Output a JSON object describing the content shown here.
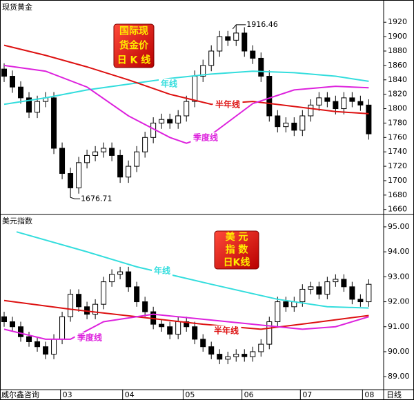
{
  "chart_data": [
    {
      "type": "candlestick",
      "title": "现货黄金",
      "badge": [
        "国际现",
        "货金价",
        "日 K 线"
      ],
      "x": [
        0,
        1,
        2,
        3,
        4,
        5,
        6,
        7,
        8,
        9,
        10,
        11,
        12,
        13,
        14,
        15,
        16,
        17,
        18,
        19,
        20,
        21,
        22,
        23,
        24,
        25,
        26,
        27,
        28,
        29,
        30,
        31,
        32,
        33,
        34,
        35,
        36,
        37,
        38,
        39,
        40,
        41,
        42,
        43,
        44
      ],
      "open": [
        1855,
        1845,
        1830,
        1815,
        1795,
        1810,
        1815,
        1745,
        1710,
        1690,
        1725,
        1735,
        1740,
        1745,
        1735,
        1705,
        1720,
        1740,
        1760,
        1780,
        1785,
        1780,
        1790,
        1810,
        1845,
        1860,
        1880,
        1900,
        1895,
        1905,
        1880,
        1870,
        1845,
        1790,
        1775,
        1780,
        1770,
        1790,
        1805,
        1815,
        1810,
        1800,
        1815,
        1810,
        1805
      ],
      "high": [
        1863,
        1853,
        1838,
        1823,
        1818,
        1823,
        1823,
        1753,
        1718,
        1733,
        1743,
        1748,
        1753,
        1753,
        1743,
        1728,
        1748,
        1768,
        1788,
        1793,
        1793,
        1798,
        1818,
        1853,
        1868,
        1888,
        1908,
        1908,
        1916.46,
        1913,
        1888,
        1878,
        1853,
        1798,
        1788,
        1788,
        1798,
        1813,
        1823,
        1823,
        1818,
        1823,
        1823,
        1818,
        1813
      ],
      "low": [
        1837,
        1822,
        1807,
        1787,
        1787,
        1802,
        1737,
        1702,
        1676.71,
        1682,
        1717,
        1727,
        1732,
        1727,
        1697,
        1697,
        1712,
        1732,
        1752,
        1772,
        1772,
        1772,
        1782,
        1802,
        1837,
        1852,
        1872,
        1887,
        1887,
        1872,
        1862,
        1837,
        1782,
        1767,
        1767,
        1762,
        1762,
        1782,
        1797,
        1802,
        1792,
        1792,
        1802,
        1797,
        1757
      ],
      "close": [
        1845,
        1830,
        1815,
        1795,
        1810,
        1815,
        1745,
        1710,
        1690,
        1725,
        1735,
        1740,
        1745,
        1735,
        1705,
        1720,
        1740,
        1760,
        1780,
        1785,
        1780,
        1790,
        1810,
        1845,
        1860,
        1880,
        1900,
        1895,
        1905,
        1880,
        1870,
        1845,
        1790,
        1775,
        1780,
        1770,
        1790,
        1805,
        1815,
        1810,
        1800,
        1815,
        1810,
        1805,
        1765
      ],
      "series": [
        {
          "name": "年线",
          "color": "#33dddd",
          "x": [
            0,
            5,
            10,
            15,
            20,
            25,
            30,
            35,
            40,
            44
          ],
          "values": [
            1806,
            1815,
            1826,
            1834,
            1842,
            1848,
            1852,
            1850,
            1845,
            1838
          ]
        },
        {
          "name": "半年线",
          "color": "#dd1111",
          "x": [
            0,
            5,
            10,
            15,
            20,
            25,
            30,
            35,
            40,
            44
          ],
          "values": [
            1888,
            1874,
            1858,
            1840,
            1820,
            1806,
            1810,
            1803,
            1796,
            1793
          ]
        },
        {
          "name": "季度线",
          "color": "#dd22dd",
          "x": [
            0,
            5,
            10,
            15,
            20,
            22,
            25,
            30,
            35,
            40,
            44
          ],
          "values": [
            1860,
            1852,
            1830,
            1790,
            1760,
            1752,
            1764,
            1807,
            1826,
            1831,
            1829
          ]
        }
      ],
      "xlim": [
        -0.5,
        45.8
      ],
      "ylim": [
        1654,
        1948
      ],
      "yticks": [
        1660,
        1680,
        1700,
        1720,
        1740,
        1760,
        1780,
        1800,
        1820,
        1840,
        1860,
        1880,
        1900,
        1920
      ]
    },
    {
      "type": "candlestick",
      "title": "美元指数",
      "badge": [
        "美 元",
        "指 数",
        "日K线"
      ],
      "x": [
        0,
        1,
        2,
        3,
        4,
        5,
        6,
        7,
        8,
        9,
        10,
        11,
        12,
        13,
        14,
        15,
        16,
        17,
        18,
        19,
        20,
        21,
        22,
        23,
        24,
        25,
        26,
        27,
        28,
        29,
        30,
        31,
        32,
        33,
        34,
        35,
        36,
        37,
        38,
        39,
        40,
        41,
        42,
        43,
        44
      ],
      "open": [
        91.4,
        91.2,
        91.0,
        90.6,
        90.4,
        90.2,
        89.9,
        90.5,
        91.4,
        92.3,
        91.8,
        91.5,
        91.9,
        92.8,
        93.1,
        93.2,
        92.6,
        92.0,
        91.6,
        91.1,
        91.0,
        90.7,
        91.2,
        91.0,
        90.5,
        90.2,
        89.9,
        89.7,
        89.8,
        89.9,
        89.8,
        90.0,
        90.3,
        91.2,
        92.0,
        91.8,
        92.0,
        92.5,
        92.6,
        92.3,
        92.8,
        92.9,
        92.6,
        92.1,
        92.0
      ],
      "high": [
        91.6,
        91.4,
        91.2,
        90.8,
        90.6,
        90.4,
        90.7,
        91.6,
        92.5,
        92.5,
        92.0,
        92.1,
        93.0,
        93.3,
        93.4,
        93.4,
        92.8,
        92.2,
        91.8,
        91.3,
        91.2,
        91.4,
        91.4,
        91.2,
        90.7,
        90.4,
        90.1,
        90.0,
        90.1,
        90.1,
        90.2,
        90.5,
        91.4,
        92.2,
        92.2,
        92.2,
        92.7,
        92.8,
        92.8,
        93.0,
        93.1,
        93.1,
        92.8,
        92.3,
        92.9
      ],
      "low": [
        91.0,
        90.8,
        90.4,
        90.2,
        90.0,
        89.7,
        89.7,
        90.3,
        91.2,
        91.6,
        91.3,
        91.3,
        91.7,
        92.6,
        92.9,
        92.4,
        91.8,
        91.4,
        90.9,
        90.8,
        90.5,
        90.5,
        90.8,
        90.3,
        90.0,
        89.7,
        89.5,
        89.5,
        89.6,
        89.6,
        89.6,
        89.8,
        90.1,
        91.0,
        91.6,
        91.6,
        91.8,
        92.3,
        92.1,
        92.1,
        92.6,
        92.4,
        91.9,
        91.8,
        91.8
      ],
      "close": [
        91.2,
        91.0,
        90.6,
        90.4,
        90.2,
        89.9,
        90.5,
        91.4,
        92.3,
        91.8,
        91.5,
        91.9,
        92.8,
        93.1,
        93.2,
        92.6,
        92.0,
        91.6,
        91.1,
        91.0,
        90.7,
        91.2,
        91.0,
        90.5,
        90.2,
        89.9,
        89.7,
        89.8,
        89.9,
        89.8,
        90.0,
        90.3,
        91.2,
        92.0,
        91.8,
        92.0,
        92.5,
        92.6,
        92.3,
        92.8,
        92.9,
        92.6,
        92.1,
        92.0,
        92.7
      ],
      "series": [
        {
          "name": "年线",
          "color": "#33dddd",
          "x": [
            1.5,
            10,
            16,
            25,
            33,
            39,
            44
          ],
          "values": [
            94.8,
            94.0,
            93.4,
            92.7,
            92.1,
            91.8,
            91.75
          ]
        },
        {
          "name": "半年线",
          "color": "#dd1111",
          "x": [
            0,
            8,
            16,
            24,
            31,
            37,
            44
          ],
          "values": [
            92.05,
            91.7,
            91.4,
            91.1,
            90.9,
            91.15,
            91.45
          ]
        },
        {
          "name": "季度线",
          "color": "#dd22dd",
          "x": [
            0,
            5,
            8,
            12,
            18,
            24,
            30,
            36,
            40,
            44
          ],
          "values": [
            90.9,
            90.5,
            90.5,
            91.2,
            91.5,
            91.3,
            91.1,
            90.9,
            91.0,
            91.4
          ]
        }
      ],
      "xlim": [
        -0.5,
        45.8
      ],
      "ylim": [
        88.48,
        95.44
      ],
      "yticks": [
        {
          "value": 89,
          "label": "89.00"
        },
        {
          "value": 90,
          "label": "90.00"
        },
        {
          "value": 91,
          "label": "91.00"
        },
        {
          "value": 92,
          "label": "92.00"
        },
        {
          "value": 93,
          "label": "93.00"
        },
        {
          "value": 94,
          "label": "94.00"
        },
        {
          "value": 95,
          "label": "95.00"
        }
      ],
      "xticks": [
        {
          "value": 6.8,
          "label": "03"
        },
        {
          "value": 14.3,
          "label": "04"
        },
        {
          "value": 21.6,
          "label": "05"
        },
        {
          "value": 28.7,
          "label": "06"
        },
        {
          "value": 35.75,
          "label": "07"
        },
        {
          "value": 43.25,
          "label": "08"
        }
      ]
    }
  ],
  "footer": {
    "source": "威尔鑫咨询",
    "period": "日线"
  }
}
